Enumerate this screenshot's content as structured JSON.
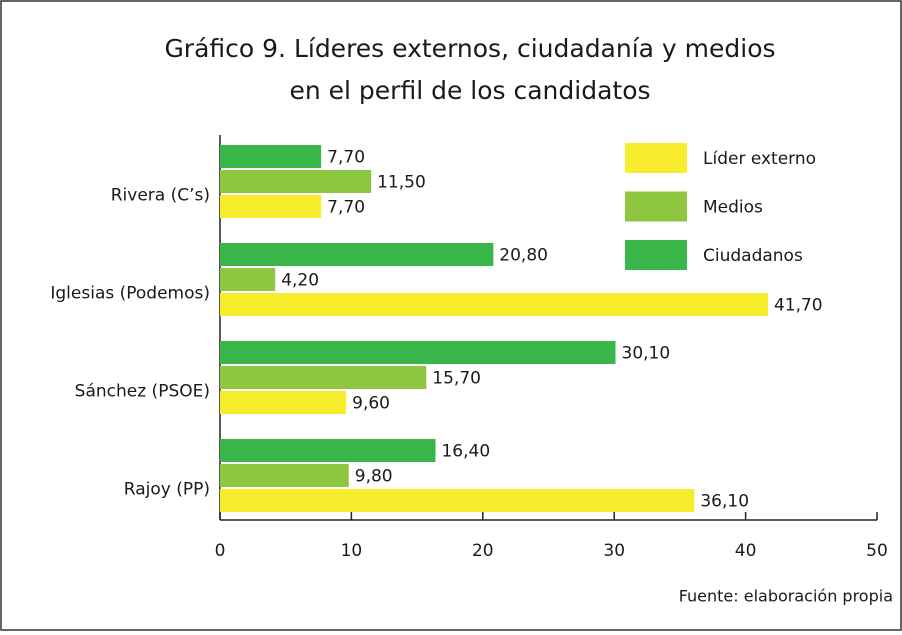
{
  "chart_data": {
    "type": "bar",
    "orientation": "horizontal",
    "title": [
      "Gráfico 9. Líderes externos, ciudadanía y medios",
      "en el perfil de los candidatos"
    ],
    "categories": [
      "Rivera (C’s)",
      "Iglesias (Podemos)",
      "Sánchez (PSOE)",
      "Rajoy (PP)"
    ],
    "series": [
      {
        "name": "Líder externo",
        "color": "#f6ec2b",
        "values": [
          7.7,
          41.7,
          9.6,
          36.1
        ],
        "value_labels": [
          "7,70",
          "41,70",
          "9,60",
          "36,10"
        ]
      },
      {
        "name": "Medios",
        "color": "#8dc63f",
        "values": [
          11.5,
          4.2,
          15.7,
          9.8
        ],
        "value_labels": [
          "11,50",
          "4,20",
          "15,70",
          "9,80"
        ]
      },
      {
        "name": "Ciudadanos",
        "color": "#39b54a",
        "values": [
          7.7,
          20.8,
          30.1,
          16.4
        ],
        "value_labels": [
          "7,70",
          "20,80",
          "30,10",
          "16,40"
        ]
      }
    ],
    "xlim": [
      0,
      50
    ],
    "xticks": [
      0,
      10,
      20,
      30,
      40,
      50
    ],
    "legend": "top-right",
    "source": "Fuente: elaboración propia"
  }
}
